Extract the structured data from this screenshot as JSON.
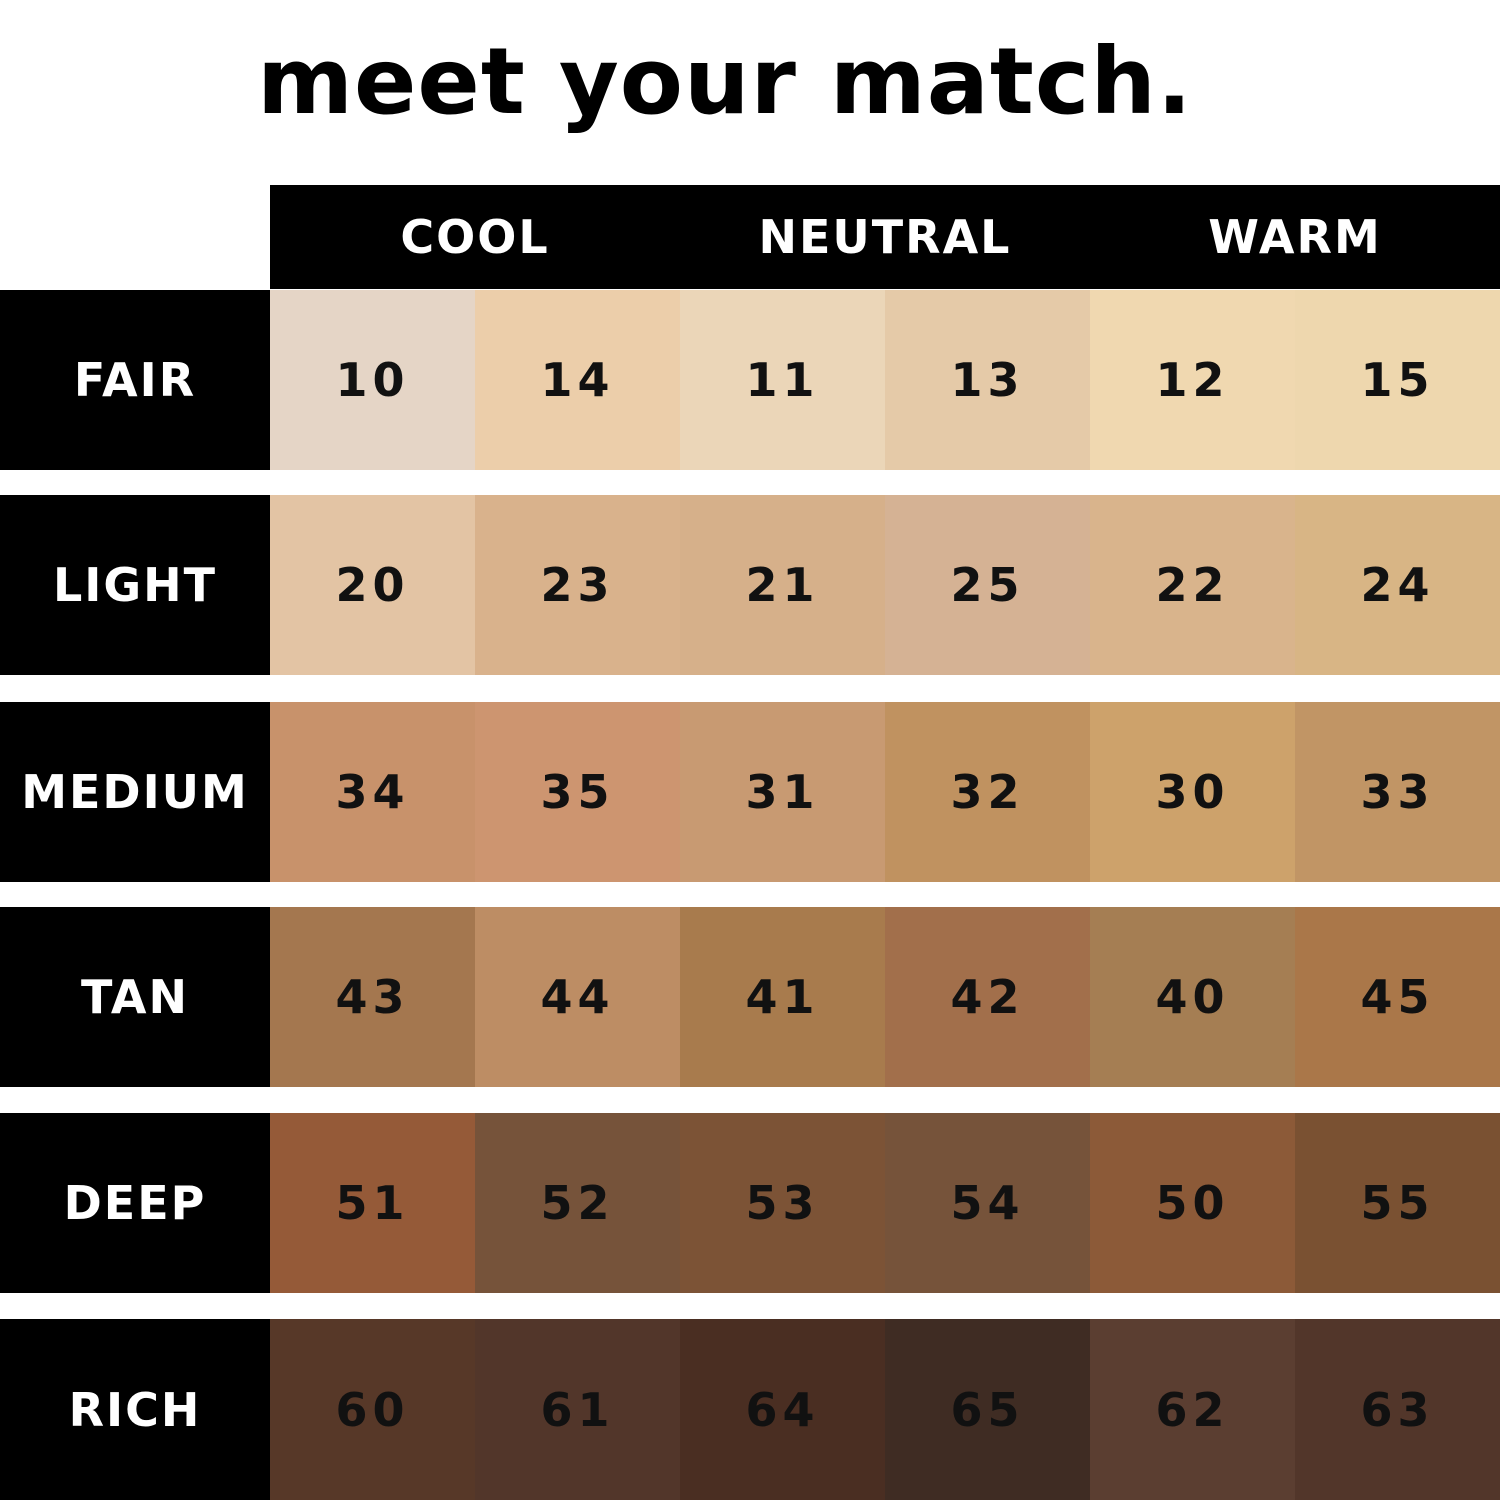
{
  "title": "meet your match.",
  "columns": [
    "COOL",
    "NEUTRAL",
    "WARM"
  ],
  "rows": [
    {
      "label": "FAIR",
      "cells": [
        {
          "shade": "10",
          "color": "#e5d5c6"
        },
        {
          "shade": "14",
          "color": "#ecceaa"
        },
        {
          "shade": "11",
          "color": "#ebd6b8"
        },
        {
          "shade": "13",
          "color": "#e5caa8"
        },
        {
          "shade": "12",
          "color": "#f0d8b0"
        },
        {
          "shade": "15",
          "color": "#eed7ae"
        }
      ]
    },
    {
      "label": "LIGHT",
      "cells": [
        {
          "shade": "20",
          "color": "#e3c4a4"
        },
        {
          "shade": "23",
          "color": "#d9b28c"
        },
        {
          "shade": "21",
          "color": "#d6b08a"
        },
        {
          "shade": "25",
          "color": "#d5b294"
        },
        {
          "shade": "22",
          "color": "#d9b48c"
        },
        {
          "shade": "24",
          "color": "#d8b585"
        }
      ]
    },
    {
      "label": "MEDIUM",
      "cells": [
        {
          "shade": "34",
          "color": "#c8926b"
        },
        {
          "shade": "35",
          "color": "#cd9570"
        },
        {
          "shade": "31",
          "color": "#c89a72"
        },
        {
          "shade": "32",
          "color": "#c09260"
        },
        {
          "shade": "30",
          "color": "#cda26b"
        },
        {
          "shade": "33",
          "color": "#c19565"
        }
      ]
    },
    {
      "label": "TAN",
      "cells": [
        {
          "shade": "43",
          "color": "#a4774f"
        },
        {
          "shade": "44",
          "color": "#bd8d64"
        },
        {
          "shade": "41",
          "color": "#a87b4d"
        },
        {
          "shade": "42",
          "color": "#a26f4b"
        },
        {
          "shade": "40",
          "color": "#a57e53"
        },
        {
          "shade": "45",
          "color": "#aa7749"
        }
      ]
    },
    {
      "label": "DEEP",
      "cells": [
        {
          "shade": "51",
          "color": "#955a38"
        },
        {
          "shade": "52",
          "color": "#76533a"
        },
        {
          "shade": "53",
          "color": "#7c5336"
        },
        {
          "shade": "54",
          "color": "#76533a"
        },
        {
          "shade": "50",
          "color": "#8c5a38"
        },
        {
          "shade": "55",
          "color": "#7a5132"
        }
      ]
    },
    {
      "label": "RICH",
      "cells": [
        {
          "shade": "60",
          "color": "#573828"
        },
        {
          "shade": "61",
          "color": "#52362a"
        },
        {
          "shade": "64",
          "color": "#4a2e22"
        },
        {
          "shade": "65",
          "color": "#3f2c23"
        },
        {
          "shade": "62",
          "color": "#5b3e31"
        },
        {
          "shade": "63",
          "color": "#52362a"
        }
      ]
    }
  ]
}
